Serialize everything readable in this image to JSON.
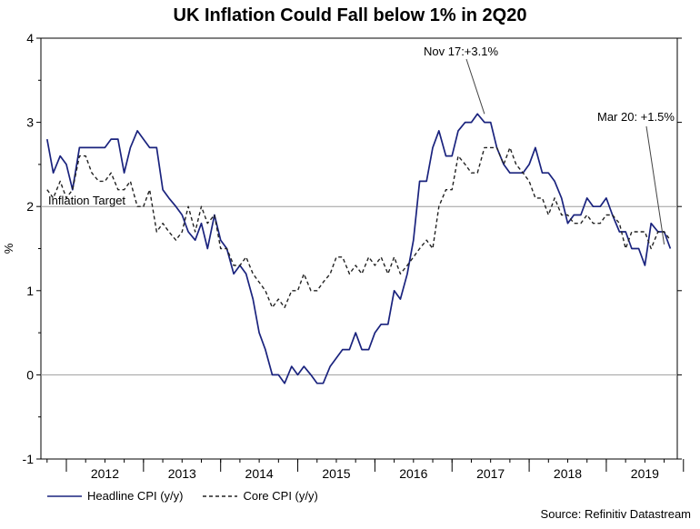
{
  "chart_data": {
    "type": "line",
    "title": "UK Inflation Could Fall below 1% in 2Q20",
    "ylabel": "%",
    "ylim": [
      -1,
      4
    ],
    "yticks": [
      "4",
      "3",
      "2",
      "1",
      "0",
      "-1"
    ],
    "x_tick_labels": [
      "2012",
      "2013",
      "2014",
      "2015",
      "2016",
      "2017",
      "2018",
      "2019"
    ],
    "xlim": [
      2011.67,
      2019.92
    ],
    "series": [
      {
        "name": "Headline CPI (y/y)",
        "color": "#1a237e",
        "style": "solid",
        "x": [
          2011.75,
          2011.83,
          2011.92,
          2012.0,
          2012.08,
          2012.17,
          2012.25,
          2012.33,
          2012.42,
          2012.5,
          2012.58,
          2012.67,
          2012.75,
          2012.83,
          2012.92,
          2013.0,
          2013.08,
          2013.17,
          2013.25,
          2013.33,
          2013.42,
          2013.5,
          2013.58,
          2013.67,
          2013.75,
          2013.83,
          2013.92,
          2014.0,
          2014.08,
          2014.17,
          2014.25,
          2014.33,
          2014.42,
          2014.5,
          2014.58,
          2014.67,
          2014.75,
          2014.83,
          2014.92,
          2015.0,
          2015.08,
          2015.17,
          2015.25,
          2015.33,
          2015.42,
          2015.5,
          2015.58,
          2015.67,
          2015.75,
          2015.83,
          2015.92,
          2016.0,
          2016.08,
          2016.17,
          2016.25,
          2016.33,
          2016.42,
          2016.5,
          2016.58,
          2016.67,
          2016.75,
          2016.83,
          2016.92,
          2017.0,
          2017.08,
          2017.17,
          2017.25,
          2017.33,
          2017.42,
          2017.5,
          2017.58,
          2017.67,
          2017.75,
          2017.83,
          2017.92,
          2018.0,
          2018.08,
          2018.17,
          2018.25,
          2018.33,
          2018.42,
          2018.5,
          2018.58,
          2018.67,
          2018.75,
          2018.83,
          2018.92,
          2019.0,
          2019.08,
          2019.17,
          2019.25,
          2019.33,
          2019.42,
          2019.5,
          2019.58,
          2019.67,
          2019.75,
          2019.83
        ],
        "values": [
          2.8,
          2.4,
          2.6,
          2.5,
          2.2,
          2.7,
          2.7,
          2.7,
          2.7,
          2.7,
          2.8,
          2.8,
          2.4,
          2.7,
          2.9,
          2.8,
          2.7,
          2.7,
          2.2,
          2.1,
          2.0,
          1.9,
          1.7,
          1.6,
          1.8,
          1.5,
          1.9,
          1.6,
          1.5,
          1.2,
          1.3,
          1.2,
          0.9,
          0.5,
          0.3,
          0.0,
          0.0,
          -0.1,
          0.1,
          0.0,
          0.1,
          0.0,
          -0.1,
          -0.1,
          0.1,
          0.2,
          0.3,
          0.3,
          0.5,
          0.3,
          0.3,
          0.5,
          0.6,
          0.6,
          1.0,
          0.9,
          1.2,
          1.6,
          2.3,
          2.3,
          2.7,
          2.9,
          2.6,
          2.6,
          2.9,
          3.0,
          3.0,
          3.1,
          3.0,
          3.0,
          2.7,
          2.5,
          2.4,
          2.4,
          2.4,
          2.5,
          2.7,
          2.4,
          2.4,
          2.3,
          2.1,
          1.8,
          1.9,
          1.9,
          2.1,
          2.0,
          2.0,
          2.1,
          1.9,
          1.7,
          1.7,
          1.5,
          1.5,
          1.3,
          1.8,
          1.7,
          1.7,
          1.5
        ]
      },
      {
        "name": "Core CPI (y/y)",
        "color": "#222222",
        "style": "dashed",
        "x": [
          2011.75,
          2011.83,
          2011.92,
          2012.0,
          2012.08,
          2012.17,
          2012.25,
          2012.33,
          2012.42,
          2012.5,
          2012.58,
          2012.67,
          2012.75,
          2012.83,
          2012.92,
          2013.0,
          2013.08,
          2013.17,
          2013.25,
          2013.33,
          2013.42,
          2013.5,
          2013.58,
          2013.67,
          2013.75,
          2013.83,
          2013.92,
          2014.0,
          2014.08,
          2014.17,
          2014.25,
          2014.33,
          2014.42,
          2014.5,
          2014.58,
          2014.67,
          2014.75,
          2014.83,
          2014.92,
          2015.0,
          2015.08,
          2015.17,
          2015.25,
          2015.33,
          2015.42,
          2015.5,
          2015.58,
          2015.67,
          2015.75,
          2015.83,
          2015.92,
          2016.0,
          2016.08,
          2016.17,
          2016.25,
          2016.33,
          2016.42,
          2016.5,
          2016.58,
          2016.67,
          2016.75,
          2016.83,
          2016.92,
          2017.0,
          2017.08,
          2017.17,
          2017.25,
          2017.33,
          2017.42,
          2017.5,
          2017.58,
          2017.67,
          2017.75,
          2017.83,
          2017.92,
          2018.0,
          2018.08,
          2018.17,
          2018.25,
          2018.33,
          2018.42,
          2018.5,
          2018.58,
          2018.67,
          2018.75,
          2018.83,
          2018.92,
          2019.0,
          2019.08,
          2019.17,
          2019.25,
          2019.33,
          2019.42,
          2019.5,
          2019.58,
          2019.67,
          2019.75,
          2019.83
        ],
        "values": [
          2.2,
          2.1,
          2.3,
          2.1,
          2.2,
          2.6,
          2.6,
          2.4,
          2.3,
          2.3,
          2.4,
          2.2,
          2.2,
          2.3,
          2.0,
          2.0,
          2.2,
          1.7,
          1.8,
          1.7,
          1.6,
          1.7,
          2.0,
          1.7,
          2.0,
          1.8,
          1.9,
          1.5,
          1.5,
          1.3,
          1.3,
          1.4,
          1.2,
          1.1,
          1.0,
          0.8,
          0.9,
          0.8,
          1.0,
          1.0,
          1.2,
          1.0,
          1.0,
          1.1,
          1.2,
          1.4,
          1.4,
          1.2,
          1.3,
          1.2,
          1.4,
          1.3,
          1.4,
          1.2,
          1.4,
          1.2,
          1.3,
          1.4,
          1.5,
          1.6,
          1.5,
          2.0,
          2.2,
          2.2,
          2.6,
          2.5,
          2.4,
          2.4,
          2.7,
          2.7,
          2.7,
          2.5,
          2.7,
          2.5,
          2.4,
          2.3,
          2.1,
          2.1,
          1.9,
          2.1,
          1.9,
          1.9,
          1.8,
          1.8,
          1.9,
          1.8,
          1.8,
          1.9,
          1.9,
          1.8,
          1.5,
          1.7,
          1.7,
          1.7,
          1.5,
          1.7,
          1.7,
          1.6
        ]
      }
    ],
    "reference_line": {
      "label": "Inflation Target",
      "value": 2
    },
    "zero_line": 0,
    "annotations": [
      {
        "text": "Nov 17:+3.1%",
        "x": 2017.42,
        "y": 3.1
      },
      {
        "text": "Mar 20: +1.5%",
        "x": 2019.75,
        "y": 1.55
      }
    ],
    "grid": false,
    "legend_position": "bottom-left",
    "source": "Source: Refinitiv Datastream"
  }
}
